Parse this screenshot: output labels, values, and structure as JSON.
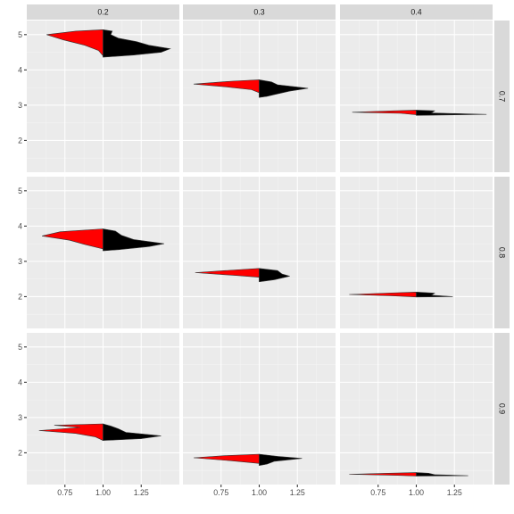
{
  "chart_data": {
    "type": "split-violin",
    "title": "",
    "xlabel": "",
    "ylabel": "",
    "column_facets": [
      "0.2",
      "0.3",
      "0.4"
    ],
    "row_facets": [
      "0.7",
      "0.8",
      "0.9"
    ],
    "xlim": [
      0.5,
      1.5
    ],
    "ylim": [
      1.1,
      5.4
    ],
    "x_ticks": [
      0.75,
      1.0,
      1.25
    ],
    "x_tick_labels": [
      "0.75",
      "1.00",
      "1.25"
    ],
    "y_ticks": [
      2,
      3,
      4,
      5
    ],
    "y_tick_labels": [
      "2",
      "3",
      "4",
      "5"
    ],
    "grid": true,
    "legend": "none",
    "series": [
      {
        "side": "left",
        "color": "#ff0000"
      },
      {
        "side": "right",
        "color": "#000000"
      }
    ],
    "panels": [
      {
        "row": 0,
        "col": 0,
        "left": [
          [
            5.14,
            1.0
          ],
          [
            5.1,
            0.82
          ],
          [
            5.0,
            0.63
          ],
          [
            4.85,
            0.74
          ],
          [
            4.7,
            0.88
          ],
          [
            4.55,
            0.97
          ],
          [
            4.4,
            1.0
          ],
          [
            4.36,
            1.0
          ]
        ],
        "right": [
          [
            5.14,
            1.0
          ],
          [
            5.1,
            1.06
          ],
          [
            5.0,
            1.05
          ],
          [
            4.9,
            1.1
          ],
          [
            4.8,
            1.22
          ],
          [
            4.7,
            1.3
          ],
          [
            4.6,
            1.44
          ],
          [
            4.5,
            1.38
          ],
          [
            4.42,
            1.2
          ],
          [
            4.36,
            1.0
          ]
        ]
      },
      {
        "row": 0,
        "col": 1,
        "left": [
          [
            3.72,
            1.0
          ],
          [
            3.68,
            0.82
          ],
          [
            3.6,
            0.57
          ],
          [
            3.52,
            0.78
          ],
          [
            3.44,
            0.95
          ],
          [
            3.35,
            1.0
          ],
          [
            3.22,
            1.0
          ]
        ],
        "right": [
          [
            3.72,
            1.0
          ],
          [
            3.66,
            1.08
          ],
          [
            3.58,
            1.12
          ],
          [
            3.48,
            1.32
          ],
          [
            3.4,
            1.2
          ],
          [
            3.3,
            1.1
          ],
          [
            3.25,
            1.05
          ],
          [
            3.22,
            1.0
          ]
        ]
      },
      {
        "row": 0,
        "col": 2,
        "left": [
          [
            2.86,
            1.0
          ],
          [
            2.84,
            0.85
          ],
          [
            2.8,
            0.58
          ],
          [
            2.77,
            0.9
          ],
          [
            2.73,
            1.0
          ],
          [
            2.71,
            1.0
          ]
        ],
        "right": [
          [
            2.86,
            1.0
          ],
          [
            2.84,
            1.12
          ],
          [
            2.78,
            1.1
          ],
          [
            2.74,
            1.46
          ],
          [
            2.71,
            1.0
          ]
        ]
      },
      {
        "row": 1,
        "col": 0,
        "left": [
          [
            3.92,
            1.0
          ],
          [
            3.84,
            0.72
          ],
          [
            3.72,
            0.6
          ],
          [
            3.6,
            0.78
          ],
          [
            3.48,
            0.88
          ],
          [
            3.35,
            1.0
          ],
          [
            3.3,
            1.0
          ]
        ],
        "right": [
          [
            3.92,
            1.0
          ],
          [
            3.86,
            1.08
          ],
          [
            3.74,
            1.12
          ],
          [
            3.62,
            1.2
          ],
          [
            3.5,
            1.4
          ],
          [
            3.42,
            1.3
          ],
          [
            3.33,
            1.1
          ],
          [
            3.3,
            1.0
          ]
        ]
      },
      {
        "row": 1,
        "col": 1,
        "left": [
          [
            2.8,
            1.0
          ],
          [
            2.74,
            0.78
          ],
          [
            2.68,
            0.58
          ],
          [
            2.6,
            0.85
          ],
          [
            2.55,
            1.0
          ],
          [
            2.42,
            1.0
          ]
        ],
        "right": [
          [
            2.8,
            1.0
          ],
          [
            2.74,
            1.12
          ],
          [
            2.64,
            1.15
          ],
          [
            2.58,
            1.2
          ],
          [
            2.48,
            1.1
          ],
          [
            2.42,
            1.0
          ]
        ]
      },
      {
        "row": 1,
        "col": 2,
        "left": [
          [
            2.13,
            1.0
          ],
          [
            2.1,
            0.8
          ],
          [
            2.06,
            0.56
          ],
          [
            2.02,
            0.85
          ],
          [
            1.99,
            1.0
          ]
        ],
        "right": [
          [
            2.13,
            1.0
          ],
          [
            2.1,
            1.12
          ],
          [
            2.04,
            1.1
          ],
          [
            2.0,
            1.24
          ],
          [
            1.99,
            1.0
          ]
        ]
      },
      {
        "row": 2,
        "col": 0,
        "left": [
          [
            2.82,
            1.0
          ],
          [
            2.78,
            0.68
          ],
          [
            2.72,
            0.85
          ],
          [
            2.63,
            0.58
          ],
          [
            2.55,
            0.82
          ],
          [
            2.45,
            0.95
          ],
          [
            2.35,
            1.0
          ]
        ],
        "right": [
          [
            2.82,
            1.0
          ],
          [
            2.76,
            1.05
          ],
          [
            2.68,
            1.1
          ],
          [
            2.58,
            1.15
          ],
          [
            2.48,
            1.38
          ],
          [
            2.4,
            1.25
          ],
          [
            2.35,
            1.0
          ]
        ]
      },
      {
        "row": 2,
        "col": 1,
        "left": [
          [
            1.96,
            1.0
          ],
          [
            1.92,
            0.78
          ],
          [
            1.86,
            0.57
          ],
          [
            1.78,
            0.8
          ],
          [
            1.7,
            1.0
          ],
          [
            1.64,
            1.0
          ]
        ],
        "right": [
          [
            1.96,
            1.0
          ],
          [
            1.9,
            1.12
          ],
          [
            1.84,
            1.28
          ],
          [
            1.76,
            1.1
          ],
          [
            1.68,
            1.05
          ],
          [
            1.64,
            1.0
          ]
        ]
      },
      {
        "row": 2,
        "col": 2,
        "left": [
          [
            1.44,
            1.0
          ],
          [
            1.42,
            0.82
          ],
          [
            1.39,
            0.56
          ],
          [
            1.36,
            0.88
          ],
          [
            1.34,
            1.0
          ]
        ],
        "right": [
          [
            1.44,
            1.0
          ],
          [
            1.42,
            1.08
          ],
          [
            1.38,
            1.12
          ],
          [
            1.35,
            1.34
          ],
          [
            1.34,
            1.0
          ]
        ]
      }
    ]
  }
}
